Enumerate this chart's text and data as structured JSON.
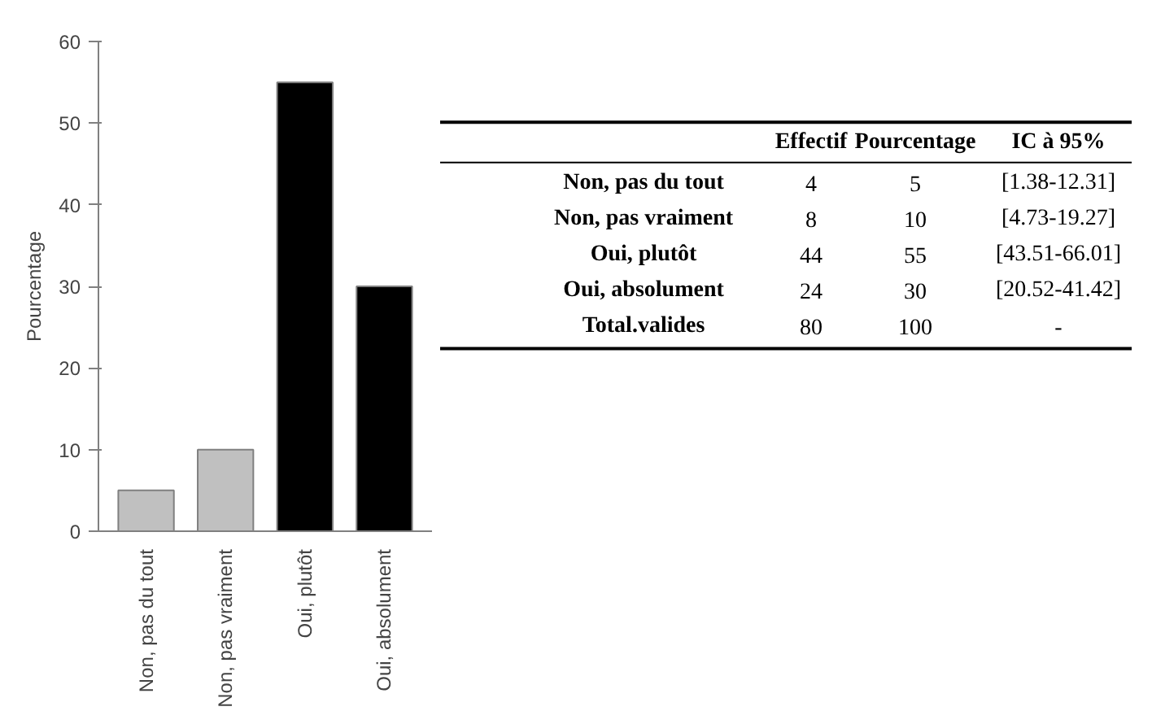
{
  "chart_data": [
    {
      "type": "bar",
      "ylabel": "Pourcentage",
      "categories": [
        "Non, pas du tout",
        "Non, pas vraiment",
        "Oui, plutôt",
        "Oui, absolument"
      ],
      "values": [
        5,
        10,
        55,
        30
      ],
      "colors": [
        "#c0c0c0",
        "#c0c0c0",
        "#000000",
        "#000000"
      ],
      "ylim": [
        0,
        60
      ],
      "yticks": [
        0,
        10,
        20,
        30,
        40,
        50,
        60
      ],
      "grid": false
    },
    {
      "type": "other",
      "data_labels": true,
      "categories": [
        "Non, pas du tout",
        "Non, pas vraiment",
        "Oui, plutôt",
        "Oui, absolument",
        "Total.valides"
      ],
      "series": [
        {
          "name": "Effectif",
          "values": [
            4,
            8,
            44,
            24,
            80
          ]
        },
        {
          "name": "Pourcentage",
          "values": [
            5,
            10,
            55,
            30,
            100
          ]
        },
        {
          "name": "IC à 95%",
          "values": [
            null,
            null,
            null,
            null,
            null
          ],
          "value_labels": [
            "[1.38-12.31]",
            "[4.73-19.27]",
            "[43.51-66.01]",
            "[20.52-41.42]",
            "-"
          ]
        }
      ]
    }
  ]
}
